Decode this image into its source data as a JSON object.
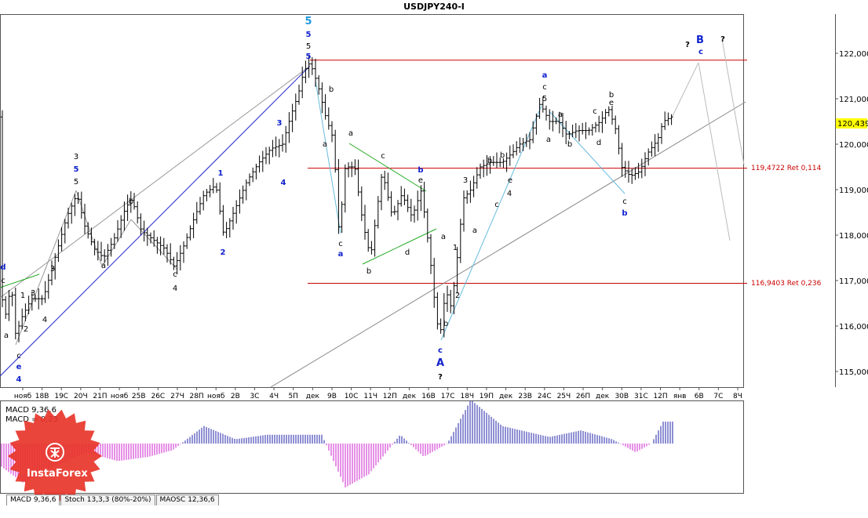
{
  "title": "USDJPY240-I",
  "price_axis": {
    "ticks": [
      "122,000",
      "121,000",
      "120,000",
      "119,000",
      "118,000",
      "117,000",
      "116,000",
      "115,000"
    ],
    "current_price": "120,439",
    "ret1_label": "119,4722 Ret 0,114",
    "ret2_label": "116,9403 Ret 0,236"
  },
  "time_axis": [
    "нояб",
    "18B",
    "19C",
    "20Ч",
    "21П",
    "нояб",
    "25B",
    "26C",
    "27Ч",
    "28П",
    "нояб",
    "2B",
    "3C",
    "4Ч",
    "5П",
    "дек",
    "9B",
    "10C",
    "11Ч",
    "12П",
    "дек",
    "16B",
    "17C",
    "18Ч",
    "19П",
    "дек",
    "23B",
    "24C",
    "25Ч",
    "26П",
    "дек",
    "30B",
    "31C",
    "12П",
    "янв",
    "6B",
    "7C",
    "8Ч"
  ],
  "macd": {
    "label1": "MACD 9,36,6",
    "label2": "MACD = 0,23"
  },
  "tabs": [
    "MACD 9,36,6",
    "Stoch 13,3,3 (80%-20%)",
    "MAOSC 12,36,6"
  ],
  "logo": {
    "text": "InstaForex"
  },
  "colors": {
    "ret_line": "#cc0000",
    "up_hist": "#2222aa",
    "down_hist": "#cc22cc",
    "blue_label": "#1122cc",
    "cyan_label": "#2299dd"
  },
  "chart_data": {
    "type": "candlestick",
    "symbol": "USDJPY240-I",
    "ylim": [
      114.8,
      122.7
    ],
    "current_price": 120.439,
    "retracement_levels": [
      {
        "price": 121.85,
        "label": ""
      },
      {
        "price": 119.4722,
        "label": "119,4722 Ret 0,114"
      },
      {
        "price": 116.9403,
        "label": "116,9403 Ret 0,236"
      }
    ],
    "path": [
      [
        0,
        116.8
      ],
      [
        8,
        116.2
      ],
      [
        14,
        117.0
      ],
      [
        20,
        115.8
      ],
      [
        28,
        116.2
      ],
      [
        40,
        116.6
      ],
      [
        55,
        116.6
      ],
      [
        70,
        117.5
      ],
      [
        85,
        118.4
      ],
      [
        98,
        118.9
      ],
      [
        108,
        118.2
      ],
      [
        120,
        117.7
      ],
      [
        132,
        117.5
      ],
      [
        145,
        117.9
      ],
      [
        160,
        118.6
      ],
      [
        168,
        118.8
      ],
      [
        180,
        118.1
      ],
      [
        195,
        117.9
      ],
      [
        210,
        117.7
      ],
      [
        222,
        117.3
      ],
      [
        235,
        117.8
      ],
      [
        248,
        118.4
      ],
      [
        260,
        118.9
      ],
      [
        275,
        119.1
      ],
      [
        285,
        118.0
      ],
      [
        300,
        118.6
      ],
      [
        315,
        119.2
      ],
      [
        330,
        119.6
      ],
      [
        345,
        119.9
      ],
      [
        360,
        120.0
      ],
      [
        370,
        120.6
      ],
      [
        380,
        121.1
      ],
      [
        387,
        121.6
      ],
      [
        395,
        121.8
      ],
      [
        405,
        121.3
      ],
      [
        415,
        120.6
      ],
      [
        425,
        120.1
      ],
      [
        432,
        118.0
      ],
      [
        440,
        119.5
      ],
      [
        452,
        119.5
      ],
      [
        462,
        118.3
      ],
      [
        472,
        117.5
      ],
      [
        487,
        119.4
      ],
      [
        500,
        118.4
      ],
      [
        512,
        118.9
      ],
      [
        525,
        118.4
      ],
      [
        537,
        119.0
      ],
      [
        548,
        117.5
      ],
      [
        554,
        116.5
      ],
      [
        560,
        115.7
      ],
      [
        568,
        116.8
      ],
      [
        575,
        116.4
      ],
      [
        582,
        117.4
      ],
      [
        590,
        118.8
      ],
      [
        600,
        119.0
      ],
      [
        612,
        119.5
      ],
      [
        625,
        119.6
      ],
      [
        640,
        119.6
      ],
      [
        652,
        119.8
      ],
      [
        662,
        120.0
      ],
      [
        675,
        120.1
      ],
      [
        688,
        120.9
      ],
      [
        700,
        120.5
      ],
      [
        712,
        120.5
      ],
      [
        722,
        120.2
      ],
      [
        735,
        120.3
      ],
      [
        750,
        120.3
      ],
      [
        765,
        120.5
      ],
      [
        775,
        120.8
      ],
      [
        785,
        120.3
      ],
      [
        792,
        119.5
      ],
      [
        803,
        119.3
      ],
      [
        815,
        119.4
      ],
      [
        825,
        119.8
      ],
      [
        838,
        120.1
      ],
      [
        845,
        120.5
      ],
      [
        855,
        120.6
      ]
    ],
    "macd_hist_shape": [
      [
        0,
        -0.5
      ],
      [
        30,
        -0.9
      ],
      [
        60,
        -0.6
      ],
      [
        110,
        -0.2
      ],
      [
        150,
        -0.4
      ],
      [
        190,
        -0.3
      ],
      [
        220,
        -0.15
      ],
      [
        260,
        0.4
      ],
      [
        300,
        0.1
      ],
      [
        340,
        0.2
      ],
      [
        380,
        0.2
      ],
      [
        410,
        0.2
      ],
      [
        440,
        -1.0
      ],
      [
        470,
        -0.7
      ],
      [
        510,
        0.2
      ],
      [
        540,
        -0.3
      ],
      [
        570,
        0.0
      ],
      [
        600,
        1.0
      ],
      [
        640,
        0.4
      ],
      [
        700,
        0.15
      ],
      [
        740,
        0.3
      ],
      [
        780,
        0.1
      ],
      [
        810,
        -0.2
      ],
      [
        830,
        0.0
      ],
      [
        845,
        0.5
      ],
      [
        857,
        0.5
      ]
    ],
    "wave_labels": [
      {
        "x": 4,
        "y": 344,
        "t": "d",
        "c": "blue"
      },
      {
        "x": 4,
        "y": 361,
        "t": "c",
        "c": "black"
      },
      {
        "x": 24,
        "y": 457,
        "t": "c",
        "c": "black"
      },
      {
        "x": 24,
        "y": 471,
        "t": "e",
        "c": "blue"
      },
      {
        "x": 24,
        "y": 487,
        "t": "4",
        "c": "blue"
      },
      {
        "x": 8,
        "y": 431,
        "t": "a",
        "c": "black"
      },
      {
        "x": 33,
        "y": 423,
        "t": "2",
        "c": "black"
      },
      {
        "x": 29,
        "y": 380,
        "t": "1",
        "c": "black"
      },
      {
        "x": 42,
        "y": 377,
        "t": "3",
        "c": "black"
      },
      {
        "x": 57,
        "y": 411,
        "t": "4",
        "c": "black"
      },
      {
        "x": 67,
        "y": 346,
        "t": "3",
        "c": "black"
      },
      {
        "x": 97,
        "y": 203,
        "t": "3",
        "c": "black"
      },
      {
        "x": 97,
        "y": 219,
        "t": "5",
        "c": "blue"
      },
      {
        "x": 97,
        "y": 235,
        "t": "5",
        "c": "black"
      },
      {
        "x": 132,
        "y": 342,
        "t": "a",
        "c": "black"
      },
      {
        "x": 167,
        "y": 260,
        "t": "b",
        "c": "black"
      },
      {
        "x": 223,
        "y": 353,
        "t": "c",
        "c": "black"
      },
      {
        "x": 223,
        "y": 371,
        "t": "4",
        "c": "black"
      },
      {
        "x": 281,
        "y": 224,
        "t": "1",
        "c": "blue"
      },
      {
        "x": 284,
        "y": 325,
        "t": "2",
        "c": "blue"
      },
      {
        "x": 356,
        "y": 160,
        "t": "3",
        "c": "blue"
      },
      {
        "x": 361,
        "y": 236,
        "t": "4",
        "c": "blue"
      },
      {
        "x": 393,
        "y": 31,
        "t": "5",
        "c": "cyan"
      },
      {
        "x": 393,
        "y": 47,
        "t": "5",
        "c": "blue"
      },
      {
        "x": 393,
        "y": 62,
        "t": "5",
        "c": "black"
      },
      {
        "x": 393,
        "y": 75,
        "t": "5",
        "c": "blue"
      },
      {
        "x": 422,
        "y": 117,
        "t": "b",
        "c": "black"
      },
      {
        "x": 414,
        "y": 187,
        "t": "a",
        "c": "black"
      },
      {
        "x": 447,
        "y": 173,
        "t": "a",
        "c": "black"
      },
      {
        "x": 434,
        "y": 314,
        "t": "c",
        "c": "black"
      },
      {
        "x": 434,
        "y": 327,
        "t": "a",
        "c": "blue"
      },
      {
        "x": 470,
        "y": 349,
        "t": "b",
        "c": "black"
      },
      {
        "x": 488,
        "y": 202,
        "t": "c",
        "c": "black"
      },
      {
        "x": 519,
        "y": 325,
        "t": "d",
        "c": "black"
      },
      {
        "x": 536,
        "y": 220,
        "t": "b",
        "c": "blue"
      },
      {
        "x": 536,
        "y": 233,
        "t": "e",
        "c": "black"
      },
      {
        "x": 565,
        "y": 305,
        "t": "a",
        "c": "black"
      },
      {
        "x": 568,
        "y": 416,
        "t": "b",
        "c": "black"
      },
      {
        "x": 561,
        "y": 450,
        "t": "c",
        "c": "blue"
      },
      {
        "x": 561,
        "y": 467,
        "t": "A",
        "c": "blue"
      },
      {
        "x": 561,
        "y": 484,
        "t": "?",
        "c": "black"
      },
      {
        "x": 580,
        "y": 319,
        "t": "1",
        "c": "black"
      },
      {
        "x": 583,
        "y": 380,
        "t": "2",
        "c": "black"
      },
      {
        "x": 593,
        "y": 233,
        "t": "3",
        "c": "black"
      },
      {
        "x": 605,
        "y": 297,
        "t": "a",
        "c": "black"
      },
      {
        "x": 624,
        "y": 208,
        "t": "b",
        "c": "black"
      },
      {
        "x": 633,
        "y": 264,
        "t": "c",
        "c": "black"
      },
      {
        "x": 640,
        "y": 201,
        "t": "b",
        "c": "black"
      },
      {
        "x": 649,
        "y": 250,
        "t": "4",
        "c": "black"
      },
      {
        "x": 650,
        "y": 233,
        "t": "e",
        "c": "black"
      },
      {
        "x": 694,
        "y": 99,
        "t": "a",
        "c": "blue"
      },
      {
        "x": 694,
        "y": 114,
        "t": "c",
        "c": "black"
      },
      {
        "x": 694,
        "y": 129,
        "t": "5",
        "c": "black"
      },
      {
        "x": 699,
        "y": 181,
        "t": "a",
        "c": "black"
      },
      {
        "x": 714,
        "y": 149,
        "t": "a",
        "c": "black"
      },
      {
        "x": 726,
        "y": 187,
        "t": "b",
        "c": "black"
      },
      {
        "x": 763,
        "y": 185,
        "t": "d",
        "c": "black"
      },
      {
        "x": 758,
        "y": 145,
        "t": "c",
        "c": "black"
      },
      {
        "x": 779,
        "y": 124,
        "t": "b",
        "c": "black"
      },
      {
        "x": 779,
        "y": 134,
        "t": "e",
        "c": "black"
      },
      {
        "x": 796,
        "y": 260,
        "t": "c",
        "c": "black"
      },
      {
        "x": 796,
        "y": 275,
        "t": "b",
        "c": "blue"
      },
      {
        "x": 876,
        "y": 60,
        "t": "?",
        "c": "black"
      },
      {
        "x": 892,
        "y": 55,
        "t": "B",
        "c": "blue"
      },
      {
        "x": 893,
        "y": 69,
        "t": "c",
        "c": "blue"
      },
      {
        "x": 921,
        "y": 53,
        "t": "?",
        "c": "black"
      }
    ]
  }
}
